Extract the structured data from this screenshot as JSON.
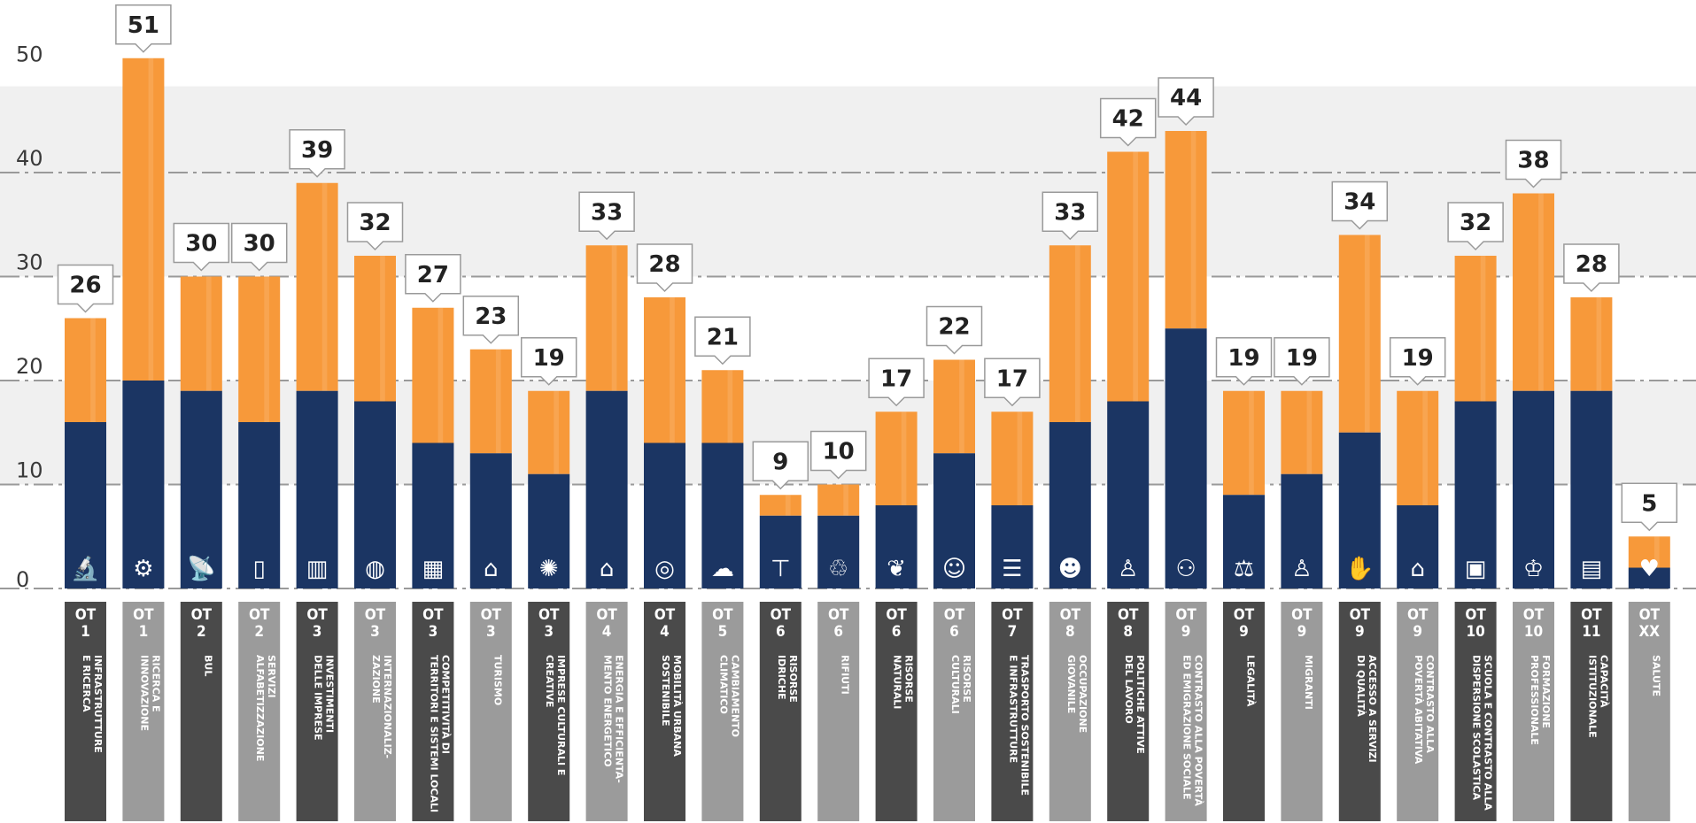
{
  "chart_data": {
    "type": "bar",
    "stacked": true,
    "yticks": [
      0,
      10,
      20,
      30,
      40,
      50
    ],
    "ylim": [
      0,
      50
    ],
    "grid": "dash-dot horizontal lines with alternating light grey bands",
    "colors": {
      "bottom": "#1b3563",
      "top": "#f7993a",
      "label_dark": "#4a4a4a",
      "label_light": "#9b9b9b"
    },
    "categories": [
      {
        "ot": "OT 1",
        "name": [
          "INFRASTRUTTURE",
          "E RICERCA"
        ],
        "icon": "microscope-icon",
        "total": 26,
        "bottom": 16
      },
      {
        "ot": "OT 1",
        "name": [
          "RICERCA E",
          "INNOVAZIONE"
        ],
        "icon": "robot-arm-icon",
        "total": 51,
        "bottom": 20
      },
      {
        "ot": "OT 2",
        "name": [
          "BUL"
        ],
        "icon": "satellite-dish-icon",
        "total": 30,
        "bottom": 19
      },
      {
        "ot": "OT 2",
        "name": [
          "SERVIZI",
          "ALFABETIZZAZIONE"
        ],
        "icon": "tablet-icon",
        "total": 30,
        "bottom": 16
      },
      {
        "ot": "OT 3",
        "name": [
          "INVESTIMENTI",
          "DELLE IMPRESE"
        ],
        "icon": "factory-icon",
        "total": 39,
        "bottom": 19
      },
      {
        "ot": "OT 3",
        "name": [
          "INTERNAZIONALIZ-",
          "ZAZIONE"
        ],
        "icon": "globe-hand-icon",
        "total": 32,
        "bottom": 18
      },
      {
        "ot": "OT 3",
        "name": [
          "COMPETITIVITÀ DI",
          "TERRITORI E SISTEMI LOCALI"
        ],
        "icon": "city-icon",
        "total": 27,
        "bottom": 14
      },
      {
        "ot": "OT 3",
        "name": [
          "TURISMO"
        ],
        "icon": "temple-icon",
        "total": 23,
        "bottom": 13
      },
      {
        "ot": "OT 3",
        "name": [
          "IMPRESE CULTURALI E",
          "CREATIVE"
        ],
        "icon": "bulb-people-icon",
        "total": 19,
        "bottom": 11
      },
      {
        "ot": "OT 4",
        "name": [
          "ENERGIA E EFFICIENTA-",
          "MENTO ENERGETICO"
        ],
        "icon": "eco-house-icon",
        "total": 33,
        "bottom": 19
      },
      {
        "ot": "OT 4",
        "name": [
          "MOBILITÀ URBANA",
          "SOSTENIBILE"
        ],
        "icon": "swirl-icon",
        "total": 28,
        "bottom": 14
      },
      {
        "ot": "OT 5",
        "name": [
          "CAMBIAMENTO",
          "CLIMATICO"
        ],
        "icon": "weather-icon",
        "total": 21,
        "bottom": 14
      },
      {
        "ot": "OT 6",
        "name": [
          "RISORSE",
          "IDRICHE"
        ],
        "icon": "faucet-icon",
        "total": 9,
        "bottom": 7
      },
      {
        "ot": "OT 6",
        "name": [
          "RIFIUTI"
        ],
        "icon": "recycle-bin-icon",
        "total": 10,
        "bottom": 7
      },
      {
        "ot": "OT 6",
        "name": [
          "RISORSE",
          "NATURALI"
        ],
        "icon": "leaf-hand-icon",
        "total": 17,
        "bottom": 8
      },
      {
        "ot": "OT 6",
        "name": [
          "RISORSE",
          "CULTURALI"
        ],
        "icon": "theatre-masks-icon",
        "total": 22,
        "bottom": 13
      },
      {
        "ot": "OT 7",
        "name": [
          "TRASPORTO SOSTENIBILE",
          "E INFRASTRUTTURE"
        ],
        "icon": "rail-track-icon",
        "total": 17,
        "bottom": 8
      },
      {
        "ot": "OT 8",
        "name": [
          "OCCUPAZIONE",
          "GIOVANILE"
        ],
        "icon": "youth-group-icon",
        "total": 33,
        "bottom": 16
      },
      {
        "ot": "OT 8",
        "name": [
          "POLITICHE ATTIVE",
          "DEL LAVORO"
        ],
        "icon": "worker-icon",
        "total": 42,
        "bottom": 18
      },
      {
        "ot": "OT 9",
        "name": [
          "CONTRASTO ALLA POVERTÀ",
          "ED EMIGRAZIONE SOCIALE"
        ],
        "icon": "people-support-icon",
        "total": 44,
        "bottom": 25
      },
      {
        "ot": "OT 9",
        "name": [
          "LEGALITÀ"
        ],
        "icon": "scales-icon",
        "total": 19,
        "bottom": 9
      },
      {
        "ot": "OT 9",
        "name": [
          "MIGRANTI"
        ],
        "icon": "person-pin-icon",
        "total": 19,
        "bottom": 11
      },
      {
        "ot": "OT 9",
        "name": [
          "ACCESSO A SERVIZI",
          "DI QUALITÀ"
        ],
        "icon": "hand-service-icon",
        "total": 34,
        "bottom": 15
      },
      {
        "ot": "OT 9",
        "name": [
          "CONTRASTO ALLA",
          "POVERTÀ ABITATIVA"
        ],
        "icon": "house-person-icon",
        "total": 19,
        "bottom": 8
      },
      {
        "ot": "OT 10",
        "name": [
          "SCUOLA E CONTRASTO ALLA",
          "DISPERSIONE SCOLASTICA"
        ],
        "icon": "backpack-icon",
        "total": 32,
        "bottom": 18
      },
      {
        "ot": "OT 10",
        "name": [
          "FORMAZIONE",
          "PROFESSIONALE"
        ],
        "icon": "graduation-cap-icon",
        "total": 38,
        "bottom": 19
      },
      {
        "ot": "OT 11",
        "name": [
          "CAPACITÀ",
          "ISTITUZIONALE"
        ],
        "icon": "institution-icon",
        "total": 28,
        "bottom": 19
      },
      {
        "ot": "OT XX",
        "name": [
          "SALUTE"
        ],
        "icon": "heart-pulse-icon",
        "total": 5,
        "bottom": 2
      }
    ]
  }
}
